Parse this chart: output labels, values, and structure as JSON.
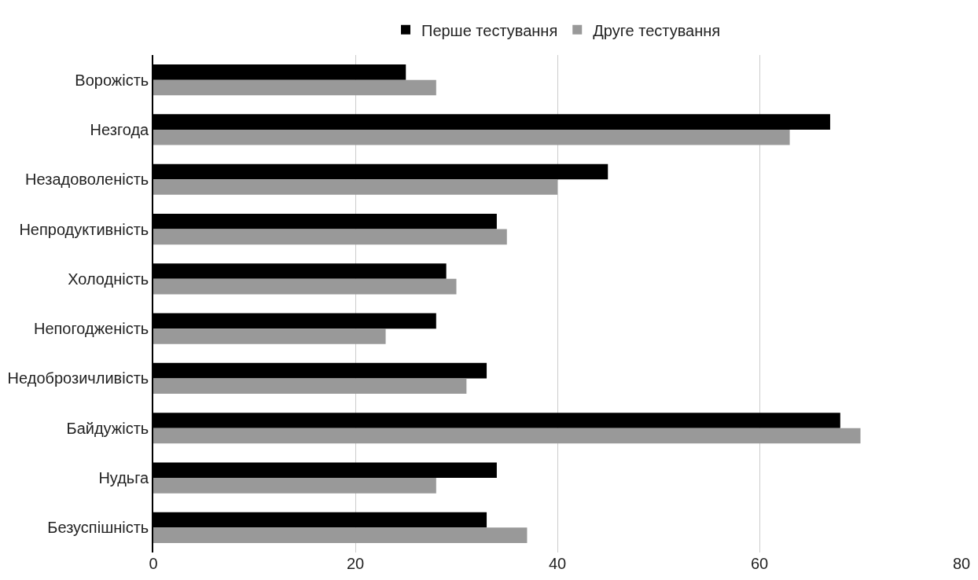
{
  "chart_data": {
    "type": "bar",
    "orientation": "horizontal",
    "categories": [
      "Ворожість",
      "Незгода",
      "Незадоволеність",
      "Непродуктивність",
      "Холодність",
      "Непогодженість",
      "Недоброзичливість",
      "Байдужість",
      "Нудьга",
      "Безуспішність"
    ],
    "series": [
      {
        "name": "Перше тестування",
        "color": "#000000",
        "values": [
          25,
          67,
          45,
          34,
          29,
          28,
          33,
          68,
          34,
          33
        ]
      },
      {
        "name": "Друге тестування",
        "color": "#999999",
        "values": [
          28,
          63,
          40,
          35,
          30,
          23,
          31,
          70,
          28,
          37
        ]
      }
    ],
    "xlim": [
      0,
      80
    ],
    "xticks": [
      0,
      20,
      40,
      60,
      80
    ],
    "grid": "x",
    "legend": "top"
  }
}
